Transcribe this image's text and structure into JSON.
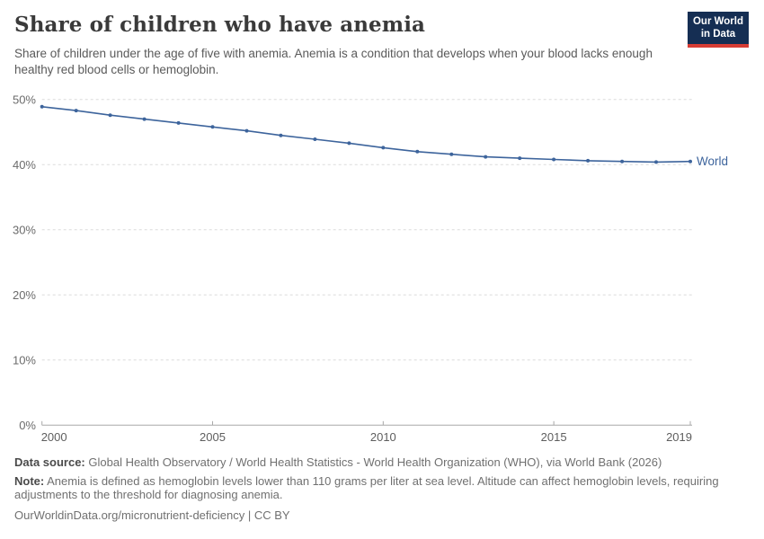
{
  "header": {
    "title": "Share of children who have anemia",
    "subtitle": "Share of children under the age of five with anemia. Anemia is a condition that develops when your blood lacks enough healthy red blood cells or hemoglobin.",
    "logo": {
      "line1": "Our World",
      "line2": "in Data"
    }
  },
  "chart_data": {
    "type": "line",
    "title": "Share of children who have anemia",
    "x": [
      2000,
      2001,
      2002,
      2003,
      2004,
      2005,
      2006,
      2007,
      2008,
      2009,
      2010,
      2011,
      2012,
      2013,
      2014,
      2015,
      2016,
      2017,
      2018,
      2019
    ],
    "series": [
      {
        "name": "World",
        "values": [
          48.9,
          48.3,
          47.6,
          47.0,
          46.4,
          45.8,
          45.2,
          44.5,
          43.9,
          43.3,
          42.6,
          42.0,
          41.6,
          41.2,
          41.0,
          40.8,
          40.6,
          40.5,
          40.4,
          40.5
        ]
      }
    ],
    "xlabel": "",
    "ylabel": "",
    "ylim": [
      0,
      50
    ],
    "xlim": [
      2000,
      2019
    ],
    "yticks": [
      0,
      10,
      20,
      30,
      40,
      50
    ],
    "ytick_suffix": "%",
    "xticks": [
      2000,
      2005,
      2010,
      2015,
      2019
    ],
    "grid": "horizontal-dashed",
    "legend_position": "end-of-line-label",
    "end_label": "World"
  },
  "colors": {
    "line": "#3d649c",
    "marker": "#3d649c",
    "end_label": "#3d649c",
    "grid": "#dcdcdc",
    "axis": "#a8a8a8",
    "ytick_label": "#6b6b6b",
    "xtick_label": "#5e5e5e",
    "title": "#3a3a3a",
    "subtitle": "#5a5a5a",
    "logo_bg": "#152e53",
    "logo_stripe": "#d73c34"
  },
  "footer": {
    "data_source_label": "Data source:",
    "data_source_text": "Global Health Observatory / World Health Statistics - World Health Organization (WHO), via World Bank (2026)",
    "note_label": "Note:",
    "note_text": "Anemia is defined as hemoglobin levels lower than 110 grams per liter at sea level. Altitude can affect hemoglobin levels, requiring adjustments to the threshold for diagnosing anemia.",
    "citation": "OurWorldinData.org/micronutrient-deficiency | CC BY"
  }
}
